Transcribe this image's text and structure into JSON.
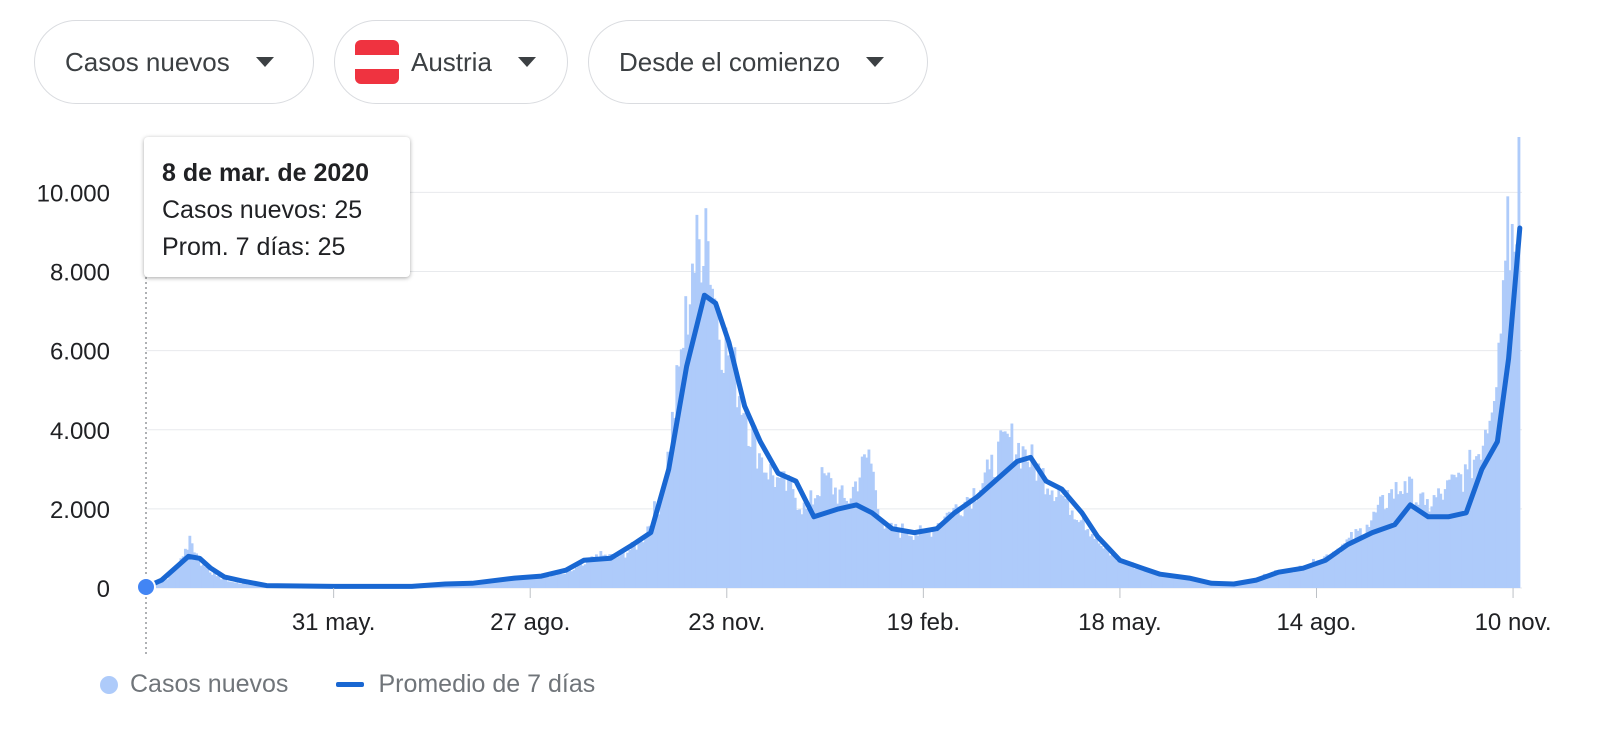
{
  "controls": {
    "metric": "Casos nuevos",
    "country": "Austria",
    "range": "Desde el comienzo"
  },
  "tooltip": {
    "date": "8 de mar. de 2020",
    "cases_line": "Casos nuevos: 25",
    "avg_line": "Prom. 7 días: 25"
  },
  "legend": {
    "bars": "Casos nuevos",
    "line": "Promedio de 7 días"
  },
  "colors": {
    "bars": "#aecbfa",
    "line": "#1967d2",
    "marker": "#4285f4",
    "grid": "#e8eaed",
    "flag_red": "#ef3340",
    "flag_white": "#ffffff"
  },
  "icons": {
    "dropdown": "caret-down-icon",
    "flag": "austria-flag-icon"
  },
  "chart_data": {
    "type": "bar",
    "x_start": "2020-03-08",
    "x_end": "2021-11-14",
    "ylim": [
      0,
      11400
    ],
    "yticks": [
      0,
      2000,
      4000,
      6000,
      8000,
      10000
    ],
    "ytick_labels": [
      "0",
      "2.000",
      "4.000",
      "6.000",
      "8.000",
      "10.000"
    ],
    "xticks": [
      {
        "date": "2020-05-31",
        "label": "31 may."
      },
      {
        "date": "2020-08-27",
        "label": "27 ago."
      },
      {
        "date": "2020-11-23",
        "label": "23 nov."
      },
      {
        "date": "2021-02-19",
        "label": "19 feb."
      },
      {
        "date": "2021-05-18",
        "label": "18 may."
      },
      {
        "date": "2021-08-14",
        "label": "14 ago."
      },
      {
        "date": "2021-11-10",
        "label": "10 nov."
      }
    ],
    "grid": true,
    "legend_position": "bottom-left",
    "highlight": {
      "date": "2020-03-08",
      "cases": 25,
      "avg7": 25
    },
    "series": [
      {
        "name": "Casos nuevos",
        "kind": "bars",
        "points": [
          [
            "2020-03-08",
            25
          ],
          [
            "2020-03-12",
            90
          ],
          [
            "2020-03-16",
            200
          ],
          [
            "2020-03-20",
            450
          ],
          [
            "2020-03-24",
            800
          ],
          [
            "2020-03-27",
            1320
          ],
          [
            "2020-03-31",
            700
          ],
          [
            "2020-04-04",
            500
          ],
          [
            "2020-04-08",
            300
          ],
          [
            "2020-04-15",
            150
          ],
          [
            "2020-04-25",
            70
          ],
          [
            "2020-05-10",
            40
          ],
          [
            "2020-05-31",
            30
          ],
          [
            "2020-06-20",
            40
          ],
          [
            "2020-07-10",
            100
          ],
          [
            "2020-07-25",
            120
          ],
          [
            "2020-08-10",
            150
          ],
          [
            "2020-08-27",
            280
          ],
          [
            "2020-09-10",
            350
          ],
          [
            "2020-09-20",
            600
          ],
          [
            "2020-09-25",
            850
          ],
          [
            "2020-10-05",
            800
          ],
          [
            "2020-10-15",
            1200
          ],
          [
            "2020-10-25",
            2500
          ],
          [
            "2020-11-01",
            5600
          ],
          [
            "2020-11-07",
            8200
          ],
          [
            "2020-11-13",
            9600
          ],
          [
            "2020-11-18",
            7000
          ],
          [
            "2020-11-25",
            5800
          ],
          [
            "2020-12-01",
            4500
          ],
          [
            "2020-12-08",
            3300
          ],
          [
            "2020-12-15",
            2800
          ],
          [
            "2020-12-22",
            2500
          ],
          [
            "2020-12-28",
            2000
          ],
          [
            "2021-01-05",
            2900
          ],
          [
            "2021-01-15",
            2200
          ],
          [
            "2021-01-25",
            3500
          ],
          [
            "2021-02-01",
            1500
          ],
          [
            "2021-02-10",
            1500
          ],
          [
            "2021-02-19",
            1400
          ],
          [
            "2021-03-01",
            1900
          ],
          [
            "2021-03-10",
            2300
          ],
          [
            "2021-03-20",
            3000
          ],
          [
            "2021-03-28",
            3900
          ],
          [
            "2021-04-05",
            3500
          ],
          [
            "2021-04-12",
            3000
          ],
          [
            "2021-04-20",
            2500
          ],
          [
            "2021-05-01",
            1800
          ],
          [
            "2021-05-10",
            1000
          ],
          [
            "2021-05-18",
            700
          ],
          [
            "2021-05-28",
            500
          ],
          [
            "2021-06-10",
            300
          ],
          [
            "2021-06-25",
            150
          ],
          [
            "2021-07-05",
            120
          ],
          [
            "2021-07-15",
            200
          ],
          [
            "2021-07-25",
            400
          ],
          [
            "2021-08-05",
            500
          ],
          [
            "2021-08-14",
            700
          ],
          [
            "2021-08-25",
            1100
          ],
          [
            "2021-09-05",
            1600
          ],
          [
            "2021-09-15",
            2400
          ],
          [
            "2021-09-22",
            2700
          ],
          [
            "2021-10-01",
            2100
          ],
          [
            "2021-10-10",
            2500
          ],
          [
            "2021-10-15",
            2800
          ],
          [
            "2021-10-20",
            3000
          ],
          [
            "2021-10-28",
            4000
          ],
          [
            "2021-11-03",
            6200
          ],
          [
            "2021-11-07",
            9900
          ],
          [
            "2021-11-10",
            8500
          ],
          [
            "2021-11-12",
            11400
          ]
        ]
      },
      {
        "name": "Promedio de 7 días",
        "kind": "line",
        "points": [
          [
            "2020-03-08",
            25
          ],
          [
            "2020-03-15",
            200
          ],
          [
            "2020-03-22",
            550
          ],
          [
            "2020-03-27",
            800
          ],
          [
            "2020-04-01",
            750
          ],
          [
            "2020-04-06",
            500
          ],
          [
            "2020-04-12",
            280
          ],
          [
            "2020-04-20",
            180
          ],
          [
            "2020-05-01",
            60
          ],
          [
            "2020-05-31",
            40
          ],
          [
            "2020-07-05",
            40
          ],
          [
            "2020-07-20",
            100
          ],
          [
            "2020-08-01",
            120
          ],
          [
            "2020-08-20",
            250
          ],
          [
            "2020-09-01",
            300
          ],
          [
            "2020-09-12",
            450
          ],
          [
            "2020-09-20",
            700
          ],
          [
            "2020-10-02",
            750
          ],
          [
            "2020-10-12",
            1100
          ],
          [
            "2020-10-20",
            1400
          ],
          [
            "2020-10-28",
            3000
          ],
          [
            "2020-11-05",
            5600
          ],
          [
            "2020-11-13",
            7400
          ],
          [
            "2020-11-18",
            7200
          ],
          [
            "2020-11-24",
            6200
          ],
          [
            "2020-12-01",
            4600
          ],
          [
            "2020-12-08",
            3700
          ],
          [
            "2020-12-16",
            2900
          ],
          [
            "2020-12-24",
            2700
          ],
          [
            "2021-01-01",
            1800
          ],
          [
            "2021-01-12",
            2000
          ],
          [
            "2021-01-20",
            2100
          ],
          [
            "2021-01-27",
            1900
          ],
          [
            "2021-02-05",
            1500
          ],
          [
            "2021-02-15",
            1400
          ],
          [
            "2021-02-25",
            1500
          ],
          [
            "2021-03-05",
            1900
          ],
          [
            "2021-03-15",
            2300
          ],
          [
            "2021-03-25",
            2800
          ],
          [
            "2021-04-02",
            3200
          ],
          [
            "2021-04-08",
            3300
          ],
          [
            "2021-04-15",
            2700
          ],
          [
            "2021-04-22",
            2500
          ],
          [
            "2021-05-01",
            1900
          ],
          [
            "2021-05-08",
            1300
          ],
          [
            "2021-05-18",
            700
          ],
          [
            "2021-05-28",
            500
          ],
          [
            "2021-06-05",
            350
          ],
          [
            "2021-06-18",
            250
          ],
          [
            "2021-06-28",
            120
          ],
          [
            "2021-07-08",
            100
          ],
          [
            "2021-07-18",
            200
          ],
          [
            "2021-07-28",
            400
          ],
          [
            "2021-08-08",
            500
          ],
          [
            "2021-08-18",
            700
          ],
          [
            "2021-08-28",
            1100
          ],
          [
            "2021-09-08",
            1400
          ],
          [
            "2021-09-18",
            1600
          ],
          [
            "2021-09-25",
            2100
          ],
          [
            "2021-10-03",
            1800
          ],
          [
            "2021-10-12",
            1800
          ],
          [
            "2021-10-20",
            1900
          ],
          [
            "2021-10-27",
            3000
          ],
          [
            "2021-11-03",
            3700
          ],
          [
            "2021-11-08",
            5800
          ],
          [
            "2021-11-12",
            8400
          ],
          [
            "2021-11-13",
            9100
          ]
        ]
      }
    ]
  }
}
